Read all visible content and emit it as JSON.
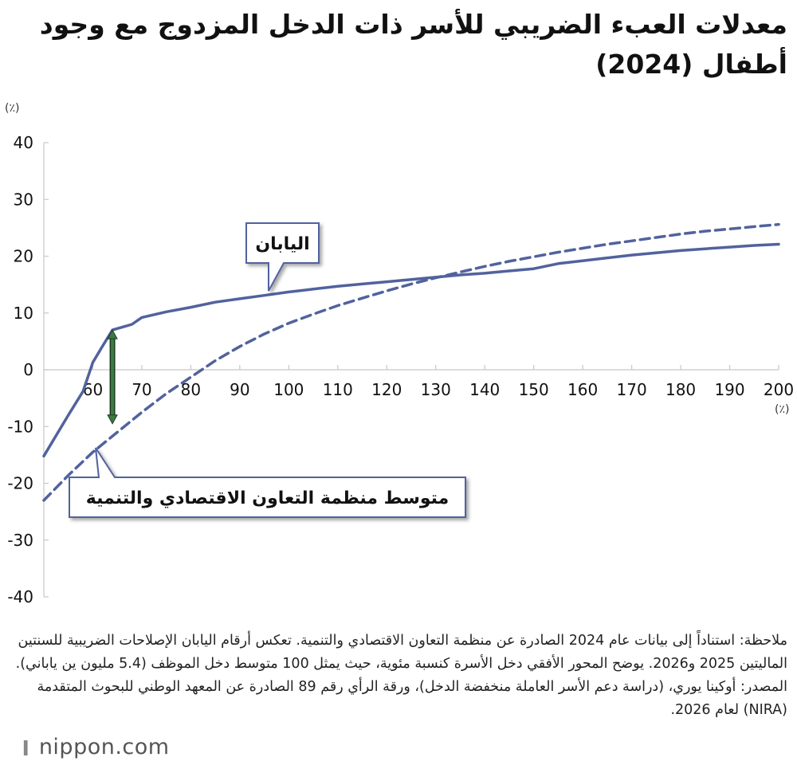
{
  "chart_data": {
    "type": "line",
    "title": "معدلات العبء الضريبي للأسر ذات الدخل المزدوج مع وجود أطفال (2024)",
    "y_unit_label": "(٪)",
    "x_unit_label": "(٪)",
    "xlim": [
      50,
      200
    ],
    "ylim": [
      -40,
      40
    ],
    "x_ticks": [
      60,
      70,
      80,
      90,
      100,
      110,
      120,
      130,
      140,
      150,
      160,
      170,
      180,
      190,
      200
    ],
    "y_ticks": [
      40,
      30,
      20,
      10,
      0,
      -10,
      -20,
      -30,
      -40
    ],
    "grid": false,
    "series": [
      {
        "name": "اليابان",
        "style": "solid",
        "color": "#51629e",
        "points": [
          [
            50,
            -15.2
          ],
          [
            55,
            -8
          ],
          [
            58,
            -3.8
          ],
          [
            60,
            1.3
          ],
          [
            62,
            4.2
          ],
          [
            64,
            7
          ],
          [
            66,
            7.5
          ],
          [
            68,
            8
          ],
          [
            70,
            9.2
          ],
          [
            75,
            10.2
          ],
          [
            80,
            11
          ],
          [
            85,
            11.9
          ],
          [
            90,
            12.5
          ],
          [
            95,
            13.1
          ],
          [
            100,
            13.7
          ],
          [
            105,
            14.2
          ],
          [
            110,
            14.7
          ],
          [
            115,
            15.1
          ],
          [
            120,
            15.5
          ],
          [
            125,
            15.9
          ],
          [
            130,
            16.3
          ],
          [
            135,
            16.7
          ],
          [
            140,
            17
          ],
          [
            145,
            17.4
          ],
          [
            150,
            17.8
          ],
          [
            155,
            18.7
          ],
          [
            160,
            19.2
          ],
          [
            165,
            19.7
          ],
          [
            170,
            20.2
          ],
          [
            175,
            20.6
          ],
          [
            180,
            21
          ],
          [
            185,
            21.3
          ],
          [
            190,
            21.6
          ],
          [
            195,
            21.9
          ],
          [
            200,
            22.1
          ]
        ]
      },
      {
        "name": "متوسط منظمة التعاون الاقتصادي والتنمية",
        "style": "dashed",
        "color": "#51629e",
        "points": [
          [
            50,
            -23
          ],
          [
            55,
            -18.6
          ],
          [
            60,
            -14.5
          ],
          [
            65,
            -11
          ],
          [
            70,
            -7.5
          ],
          [
            75,
            -4.2
          ],
          [
            80,
            -1.3
          ],
          [
            85,
            1.6
          ],
          [
            90,
            4.1
          ],
          [
            95,
            6.3
          ],
          [
            100,
            8.2
          ],
          [
            105,
            9.8
          ],
          [
            110,
            11.3
          ],
          [
            115,
            12.6
          ],
          [
            120,
            13.9
          ],
          [
            125,
            15.1
          ],
          [
            130,
            16.2
          ],
          [
            135,
            17.2
          ],
          [
            140,
            18.2
          ],
          [
            145,
            19.1
          ],
          [
            150,
            19.9
          ],
          [
            155,
            20.7
          ],
          [
            160,
            21.4
          ],
          [
            165,
            22.1
          ],
          [
            170,
            22.7
          ],
          [
            175,
            23.3
          ],
          [
            180,
            23.9
          ],
          [
            185,
            24.4
          ],
          [
            190,
            24.8
          ],
          [
            195,
            25.2
          ],
          [
            200,
            25.6
          ]
        ]
      }
    ],
    "gap_arrow": {
      "x": 64,
      "from": 7,
      "to": -9.5,
      "color": "#3c7a44"
    },
    "callouts": [
      {
        "series": 0,
        "label": "اليابان"
      },
      {
        "series": 1,
        "label": "متوسط منظمة التعاون الاقتصادي والتنمية"
      }
    ]
  },
  "notes": [
    "ملاحظة: استناداً إلى بيانات عام 2024 الصادرة عن منظمة التعاون الاقتصادي والتنمية. تعكس أرقام اليابان الإصلاحات الضريبية للسنتين الماليتين 2025 و2026. يوضح المحور الأفقي دخل الأسرة كنسبة مئوية، حيث يمثل 100 متوسط دخل الموظف (5.4 مليون ين ياباني).",
    "المصدر: أوكينا يوري، (دراسة دعم الأسر العاملة منخفضة الدخل)، ورقة الرأي رقم 89 الصادرة عن المعهد الوطني للبحوث المتقدمة (NIRA) لعام 2026."
  ],
  "logo": {
    "brand": "nippon",
    "suffix": ".com"
  }
}
